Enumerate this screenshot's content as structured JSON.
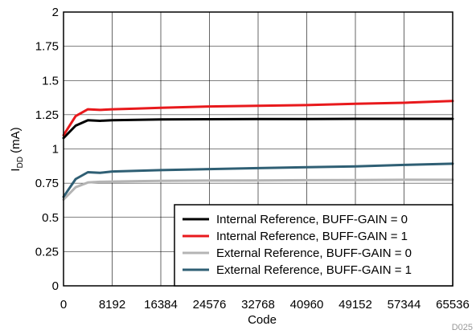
{
  "chart_data": {
    "type": "line",
    "xlabel": "Code",
    "ylabel_main": "I",
    "ylabel_sub": "DD",
    "ylabel_unit": " (mA)",
    "figure_id": "D025",
    "xlim": [
      0,
      65536
    ],
    "ylim": [
      0,
      2
    ],
    "x_ticks": [
      0,
      8192,
      16384,
      24576,
      32768,
      40960,
      49152,
      57344,
      65536
    ],
    "y_ticks": [
      0,
      0.25,
      0.5,
      0.75,
      1,
      1.25,
      1.5,
      1.75,
      2
    ],
    "grid": true,
    "legend_position": "bottom-right",
    "series": [
      {
        "name": "Internal Reference, BUFF-GAIN = 0",
        "color": "#000000",
        "x": [
          0,
          2048,
          4096,
          6144,
          8192,
          12288,
          16384,
          24576,
          32768,
          40960,
          49152,
          57344,
          65536
        ],
        "y": [
          1.08,
          1.17,
          1.21,
          1.205,
          1.21,
          1.213,
          1.215,
          1.217,
          1.218,
          1.219,
          1.22,
          1.22,
          1.22
        ]
      },
      {
        "name": "Internal Reference, BUFF-GAIN = 1",
        "color": "#e8191c",
        "x": [
          0,
          2048,
          4096,
          6144,
          8192,
          12288,
          16384,
          24576,
          32768,
          40960,
          49152,
          57344,
          65536
        ],
        "y": [
          1.1,
          1.24,
          1.29,
          1.285,
          1.29,
          1.295,
          1.3,
          1.31,
          1.315,
          1.32,
          1.33,
          1.337,
          1.35
        ]
      },
      {
        "name": "External Reference, BUFF-GAIN = 0",
        "color": "#b4b4b4",
        "x": [
          0,
          2048,
          4096,
          6144,
          8192,
          12288,
          16384,
          24576,
          32768,
          40960,
          49152,
          57344,
          65536
        ],
        "y": [
          0.63,
          0.72,
          0.755,
          0.76,
          0.762,
          0.765,
          0.767,
          0.769,
          0.77,
          0.772,
          0.773,
          0.775,
          0.775
        ]
      },
      {
        "name": "External Reference, BUFF-GAIN = 1",
        "color": "#2f5f74",
        "x": [
          0,
          2048,
          4096,
          6144,
          8192,
          12288,
          16384,
          24576,
          32768,
          40960,
          49152,
          57344,
          65536
        ],
        "y": [
          0.65,
          0.78,
          0.83,
          0.825,
          0.835,
          0.84,
          0.845,
          0.853,
          0.86,
          0.867,
          0.873,
          0.883,
          0.892
        ]
      }
    ]
  }
}
